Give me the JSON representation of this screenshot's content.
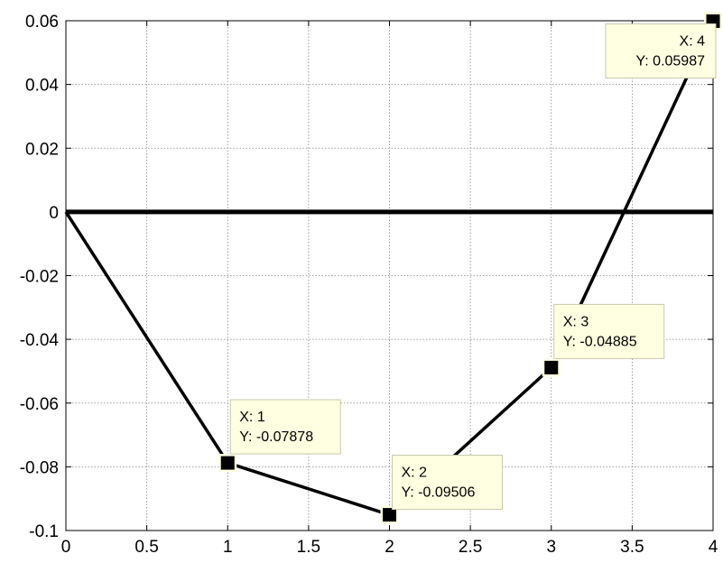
{
  "chart_data": {
    "type": "line",
    "title": "",
    "xlabel": "",
    "ylabel": "",
    "xlim": [
      0,
      4
    ],
    "ylim": [
      -0.1,
      0.06
    ],
    "grid": true,
    "x_ticks": [
      0,
      0.5,
      1,
      1.5,
      2,
      2.5,
      3,
      3.5,
      4
    ],
    "x_tick_labels": [
      "0",
      "0.5",
      "1",
      "1.5",
      "2",
      "2.5",
      "3",
      "3.5",
      "4"
    ],
    "y_ticks": [
      -0.1,
      -0.08,
      -0.06,
      -0.04,
      -0.02,
      0,
      0.02,
      0.04,
      0.06
    ],
    "y_tick_labels": [
      "-0.1",
      "-0.08",
      "-0.06",
      "-0.04",
      "-0.02",
      "0",
      "0.02",
      "0.04",
      "0.06"
    ],
    "series": [
      {
        "x": [
          0,
          1,
          2,
          3,
          4
        ],
        "y": [
          0,
          -0.07878,
          -0.09506,
          -0.04885,
          0.05987
        ],
        "color": "#000000"
      }
    ],
    "reference_lines": [
      {
        "axis": "y",
        "value": 0,
        "color": "#000000"
      }
    ],
    "data_tips": [
      {
        "x": 1,
        "y": -0.07878,
        "x_text": "X: 1",
        "y_text": "Y: -0.07878"
      },
      {
        "x": 2,
        "y": -0.09506,
        "x_text": "X: 2",
        "y_text": "Y: -0.09506"
      },
      {
        "x": 3,
        "y": -0.04885,
        "x_text": "X: 3",
        "y_text": "Y: -0.04885"
      },
      {
        "x": 4,
        "y": 0.05987,
        "x_text": "X: 4",
        "y_text": "Y: 0.05987"
      }
    ],
    "tip_background": "#ffffe1",
    "marker_color": "#000000"
  }
}
